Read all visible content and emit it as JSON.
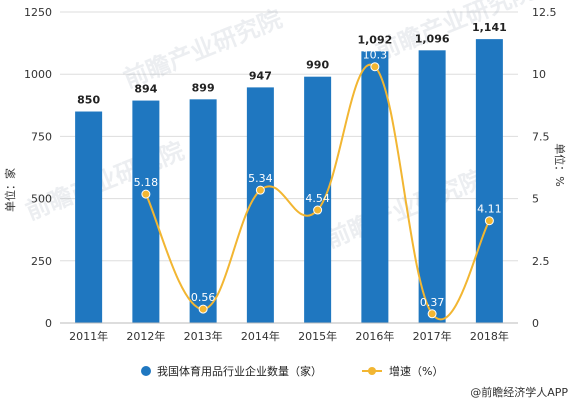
{
  "chart_data": {
    "type": "bar",
    "categories": [
      "2011年",
      "2012年",
      "2013年",
      "2014年",
      "2015年",
      "2016年",
      "2017年",
      "2018年"
    ],
    "series": [
      {
        "name": "我国体育用品行业企业数量（家）",
        "type": "bar",
        "axis": "left",
        "color": "#1f77c0",
        "values": [
          850,
          894,
          899,
          947,
          990,
          1092,
          1096,
          1141
        ],
        "labels": [
          "850",
          "894",
          "899",
          "947",
          "990",
          "1,092",
          "1,096",
          "1,141"
        ]
      },
      {
        "name": "增速（%）",
        "type": "line",
        "axis": "right",
        "color": "#f2b632",
        "values": [
          null,
          5.18,
          0.56,
          5.34,
          4.54,
          10.3,
          0.37,
          4.11
        ],
        "labels": [
          "",
          "5.18",
          "0.56",
          "5.34",
          "4.54",
          "10.3",
          "0.37",
          "4.11"
        ]
      }
    ],
    "ylabel": "单位：家",
    "ylabel_right": "单位：%",
    "ylim": [
      0,
      1250
    ],
    "ylim_right": [
      0,
      12.5
    ],
    "yticks": [
      "0",
      "250",
      "500",
      "750",
      "1000",
      "1250"
    ],
    "yticks_right": [
      "0",
      "2.5",
      "5",
      "7.5",
      "10",
      "12.5"
    ],
    "grid": true,
    "legend_position": "bottom"
  },
  "watermark_text": "前瞻产业研究院",
  "credit": "@前瞻经济学人APP"
}
